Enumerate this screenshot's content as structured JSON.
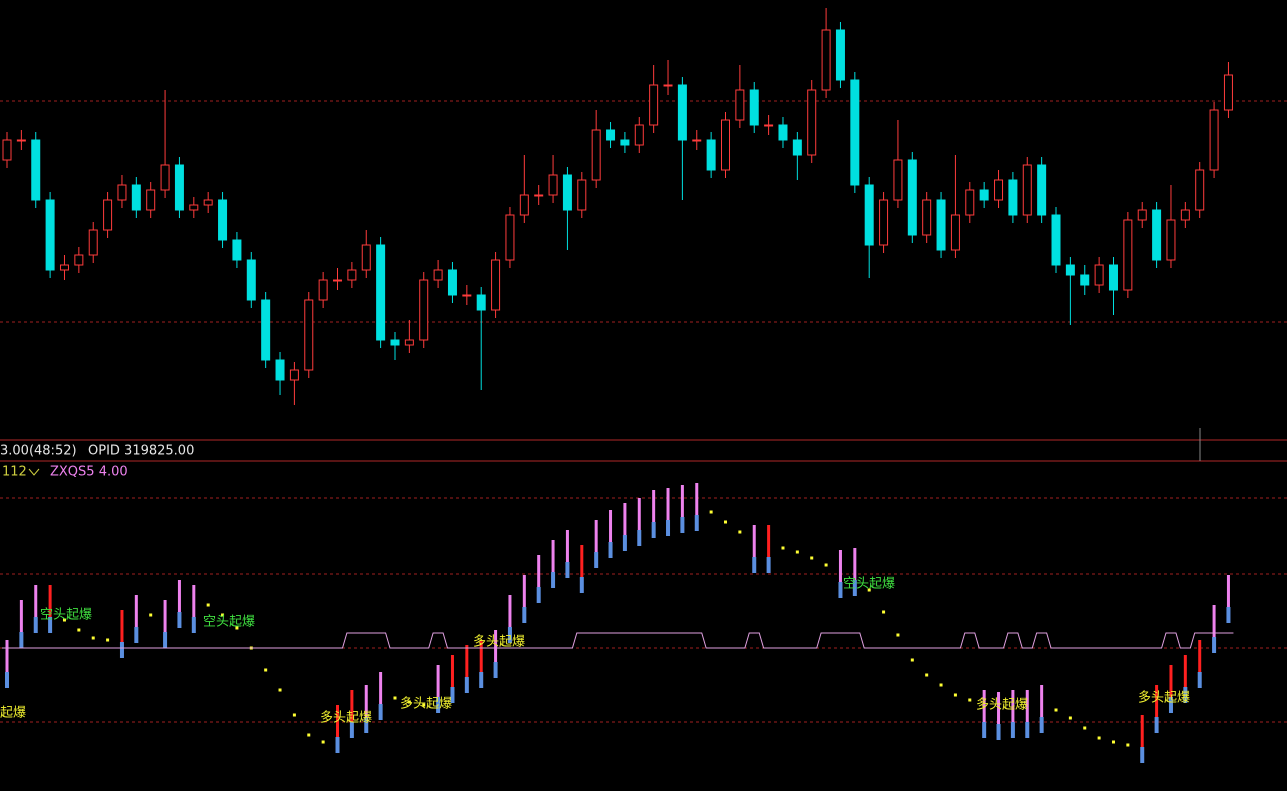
{
  "chart_data": [
    {
      "type": "candlestick",
      "ylim": [
        0,
        440
      ],
      "up_color": "#ff3c3c",
      "down_color": "#00e0e0",
      "candles": [
        [
          280,
          308,
          272,
          300
        ],
        [
          300,
          310,
          290,
          300
        ],
        [
          300,
          308,
          232,
          240
        ],
        [
          240,
          248,
          162,
          170
        ],
        [
          170,
          185,
          160,
          175
        ],
        [
          175,
          193,
          167,
          185
        ],
        [
          185,
          218,
          177,
          210
        ],
        [
          210,
          248,
          202,
          240
        ],
        [
          240,
          265,
          232,
          255
        ],
        [
          255,
          263,
          222,
          230
        ],
        [
          230,
          258,
          222,
          250
        ],
        [
          250,
          350,
          242,
          275
        ],
        [
          275,
          283,
          222,
          230
        ],
        [
          230,
          243,
          222,
          235
        ],
        [
          235,
          248,
          227,
          240
        ],
        [
          240,
          248,
          192,
          200
        ],
        [
          200,
          208,
          172,
          180
        ],
        [
          180,
          188,
          132,
          140
        ],
        [
          140,
          148,
          72,
          80
        ],
        [
          80,
          88,
          45,
          60
        ],
        [
          60,
          78,
          35,
          70
        ],
        [
          70,
          148,
          62,
          140
        ],
        [
          140,
          168,
          132,
          160
        ],
        [
          160,
          172,
          150,
          160
        ],
        [
          160,
          178,
          152,
          170
        ],
        [
          170,
          210,
          162,
          195
        ],
        [
          195,
          203,
          92,
          100
        ],
        [
          100,
          108,
          80,
          95
        ],
        [
          95,
          120,
          87,
          100
        ],
        [
          100,
          168,
          92,
          160
        ],
        [
          160,
          180,
          152,
          170
        ],
        [
          170,
          178,
          137,
          145
        ],
        [
          145,
          155,
          135,
          145
        ],
        [
          145,
          153,
          50,
          130
        ],
        [
          130,
          188,
          122,
          180
        ],
        [
          180,
          233,
          172,
          225
        ],
        [
          225,
          285,
          217,
          245
        ],
        [
          245,
          255,
          235,
          245
        ],
        [
          245,
          285,
          237,
          265
        ],
        [
          265,
          273,
          190,
          230
        ],
        [
          230,
          268,
          222,
          260
        ],
        [
          260,
          330,
          252,
          310
        ],
        [
          310,
          318,
          292,
          300
        ],
        [
          300,
          308,
          287,
          295
        ],
        [
          295,
          323,
          287,
          315
        ],
        [
          315,
          375,
          307,
          355
        ],
        [
          355,
          380,
          345,
          355
        ],
        [
          355,
          363,
          240,
          300
        ],
        [
          300,
          310,
          290,
          300
        ],
        [
          300,
          308,
          262,
          270
        ],
        [
          270,
          328,
          262,
          320
        ],
        [
          320,
          375,
          312,
          350
        ],
        [
          350,
          358,
          307,
          315
        ],
        [
          315,
          325,
          305,
          315
        ],
        [
          315,
          323,
          292,
          300
        ],
        [
          300,
          308,
          260,
          285
        ],
        [
          285,
          360,
          277,
          350
        ],
        [
          350,
          432,
          342,
          410
        ],
        [
          410,
          418,
          352,
          360
        ],
        [
          360,
          368,
          247,
          255
        ],
        [
          255,
          263,
          162,
          195
        ],
        [
          195,
          248,
          187,
          240
        ],
        [
          240,
          320,
          232,
          280
        ],
        [
          280,
          288,
          197,
          205
        ],
        [
          205,
          248,
          197,
          240
        ],
        [
          240,
          248,
          182,
          190
        ],
        [
          190,
          285,
          182,
          225
        ],
        [
          225,
          258,
          217,
          250
        ],
        [
          250,
          258,
          232,
          240
        ],
        [
          240,
          270,
          232,
          260
        ],
        [
          260,
          268,
          217,
          225
        ],
        [
          225,
          283,
          217,
          275
        ],
        [
          275,
          283,
          217,
          225
        ],
        [
          225,
          233,
          167,
          175
        ],
        [
          175,
          183,
          115,
          165
        ],
        [
          165,
          175,
          145,
          155
        ],
        [
          155,
          183,
          147,
          175
        ],
        [
          175,
          183,
          125,
          150
        ],
        [
          150,
          228,
          142,
          220
        ],
        [
          220,
          238,
          212,
          230
        ],
        [
          230,
          238,
          172,
          180
        ],
        [
          180,
          255,
          172,
          220
        ],
        [
          220,
          238,
          212,
          230
        ],
        [
          230,
          278,
          222,
          270
        ],
        [
          270,
          338,
          262,
          330
        ],
        [
          330,
          378,
          322,
          365
        ]
      ]
    },
    {
      "type": "indicator",
      "ylim": [
        -143,
        187
      ],
      "info": [
        "3.00(48:52)",
        "OPID 319825.00"
      ],
      "indicator_id": "112",
      "indicator_name": "ZXQS5 4.00",
      "series": [
        {
          "name": "pink",
          "color": "#ee82ee",
          "values": [
            8,
            48,
            63,
            null,
            null,
            null,
            null,
            null,
            null,
            53,
            null,
            48,
            68,
            63,
            null,
            null,
            null,
            null,
            null,
            null,
            null,
            null,
            null,
            null,
            null,
            -37,
            -24,
            null,
            null,
            null,
            -17,
            null,
            null,
            null,
            18,
            53,
            73,
            93,
            108,
            118,
            null,
            128,
            138,
            145,
            150,
            158,
            160,
            163,
            165,
            null,
            null,
            null,
            123,
            null,
            null,
            null,
            null,
            null,
            98,
            100,
            null,
            null,
            null,
            null,
            null,
            null,
            null,
            null,
            -42,
            -44,
            -42,
            -42,
            -37,
            null,
            null,
            null,
            null,
            null,
            null,
            null,
            null,
            null,
            null,
            null,
            43,
            73
          ]
        },
        {
          "name": "red",
          "color": "#ff2020",
          "values": [
            null,
            null,
            null,
            63,
            null,
            null,
            null,
            null,
            38,
            null,
            null,
            null,
            null,
            null,
            null,
            null,
            null,
            null,
            null,
            null,
            null,
            null,
            null,
            -57,
            -42,
            null,
            null,
            null,
            null,
            null,
            null,
            -7,
            3,
            8,
            null,
            null,
            null,
            null,
            null,
            null,
            103,
            null,
            null,
            null,
            null,
            null,
            null,
            null,
            null,
            null,
            null,
            null,
            null,
            123,
            null,
            null,
            null,
            null,
            null,
            null,
            null,
            null,
            null,
            null,
            null,
            null,
            null,
            null,
            null,
            null,
            null,
            null,
            null,
            null,
            null,
            null,
            null,
            null,
            null,
            -67,
            -37,
            -17,
            -7,
            8,
            null,
            null
          ]
        },
        {
          "name": "dots",
          "color": "#ffff33",
          "values": [
            null,
            null,
            null,
            null,
            28,
            18,
            10,
            8,
            null,
            null,
            33,
            null,
            null,
            null,
            43,
            33,
            20,
            0,
            -22,
            -42,
            -67,
            -87,
            -94,
            null,
            null,
            null,
            null,
            -50,
            -54,
            -57,
            null,
            null,
            null,
            null,
            null,
            null,
            null,
            null,
            null,
            null,
            null,
            null,
            null,
            null,
            null,
            null,
            null,
            null,
            null,
            136,
            126,
            116,
            null,
            null,
            100,
            96,
            90,
            83,
            null,
            null,
            58,
            36,
            13,
            -12,
            -27,
            -37,
            -47,
            -52,
            null,
            null,
            null,
            null,
            null,
            -62,
            -70,
            -80,
            -90,
            -94,
            -97,
            null,
            null,
            null,
            null,
            null,
            null,
            null
          ]
        },
        {
          "name": "band",
          "color": "#e0a0e0",
          "values": [
            0,
            0,
            0,
            0,
            0,
            0,
            0,
            0,
            0,
            0,
            0,
            0,
            0,
            0,
            0,
            0,
            0,
            0,
            0,
            0,
            0,
            0,
            0,
            0,
            1,
            1,
            1,
            0,
            0,
            0,
            1,
            0,
            0,
            0,
            0,
            0,
            0,
            0,
            0,
            0,
            1,
            1,
            1,
            1,
            1,
            1,
            1,
            1,
            1,
            0,
            0,
            0,
            1,
            0,
            0,
            0,
            0,
            1,
            1,
            1,
            0,
            0,
            0,
            0,
            0,
            0,
            0,
            1,
            0,
            0,
            1,
            0,
            1,
            0,
            0,
            0,
            0,
            0,
            0,
            0,
            0,
            1,
            0,
            1,
            1,
            1
          ]
        }
      ],
      "annotations": [
        "起爆",
        "空头起爆",
        "空头起爆",
        "多头起爆",
        "多头起爆",
        "多头起爆",
        "空头起爆",
        "多头起爆",
        "多头起爆"
      ]
    }
  ]
}
